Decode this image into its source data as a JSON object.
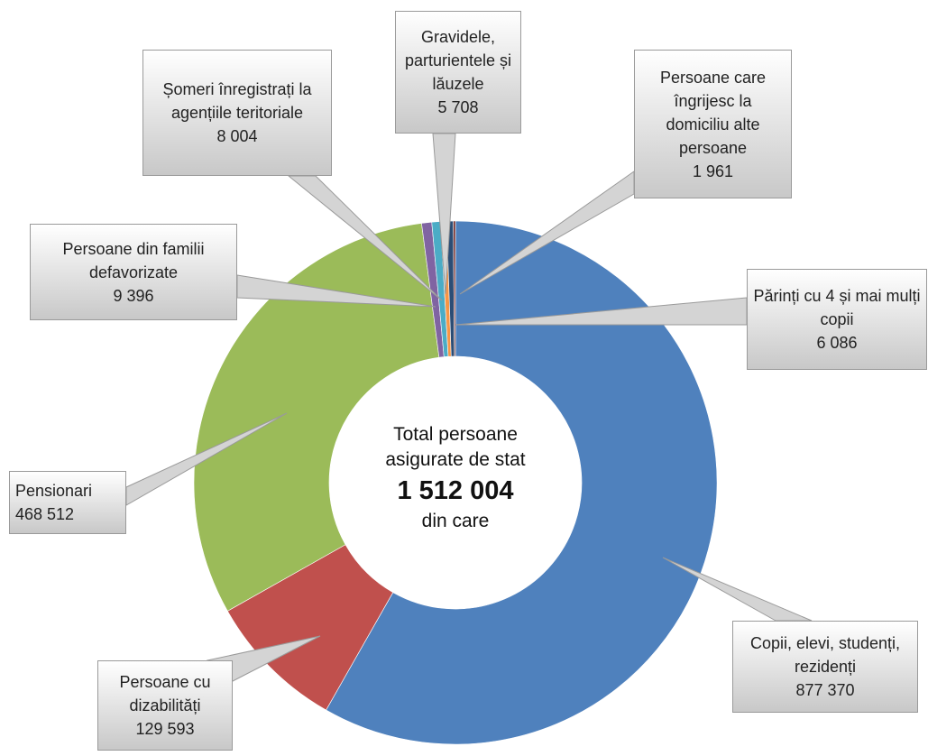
{
  "chart_data": {
    "type": "donut",
    "categories": [
      "Copii, elevi, studenți, rezidenți",
      "Persoane cu dizabilități",
      "Pensionari",
      "Persoane din familii defavorizate",
      "Șomeri înregistrați la agențiile teritoriale",
      "Gravidele, parturientele și lăuzele",
      "Părinți cu 4 și mai mulți copii",
      "Persoane care îngrijesc la domiciliu alte persoane"
    ],
    "values": [
      877370,
      129593,
      468512,
      9396,
      8004,
      5708,
      6086,
      1961
    ],
    "value_labels": [
      "877 370",
      "129 593",
      "468 512",
      "9 396",
      "8 004",
      "5 708",
      "6 086",
      "1 961"
    ],
    "colors": [
      "#4f81bd",
      "#c0504d",
      "#9bbb59",
      "#8064a2",
      "#4bacc6",
      "#f79646",
      "#2c4d75",
      "#772c2a"
    ],
    "center_text": [
      "Total persoane",
      "asigurate de stat"
    ],
    "total": {
      "value": 1512004,
      "label": "1 512 004"
    },
    "total_note": "din care"
  }
}
